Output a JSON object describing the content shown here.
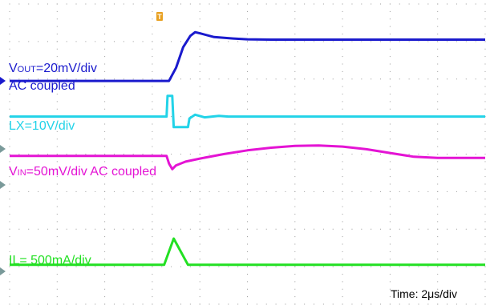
{
  "chart_data": {
    "type": "line",
    "grid": true,
    "grid_divisions": {
      "x": 10,
      "y": 8
    },
    "annotations": {
      "vout": {
        "main": "V",
        "sub": "OUT",
        "rest": "=20mV/div",
        "line2": "AC coupled"
      },
      "lx": "LX=10V/div",
      "vin": {
        "main": "V",
        "sub": "IN",
        "rest": "=50mV/div AC coupled"
      },
      "il": "IL= 500mA/div",
      "time": "Time: 2μs/div"
    },
    "trigger_marker": "T",
    "colors": {
      "vout": "#1a1acd",
      "lx": "#22d3e8",
      "vin": "#e414d4",
      "il": "#22e022",
      "grid": "#9a9a9a",
      "marker": "#e8a020"
    },
    "series": [
      {
        "name": "VOUT",
        "color": "#1a1acd",
        "x": [
          0,
          3.35,
          3.5,
          3.65,
          3.8,
          3.9,
          4.0,
          4.3,
          4.7,
          5.0,
          5.5,
          10
        ],
        "y": [
          5.95,
          5.95,
          6.3,
          6.85,
          7.15,
          7.25,
          7.22,
          7.12,
          7.08,
          7.06,
          7.05,
          7.05
        ]
      },
      {
        "name": "LX",
        "color": "#22d3e8",
        "x": [
          0,
          3.3,
          3.32,
          3.42,
          3.45,
          3.75,
          3.78,
          3.9,
          4.1,
          4.4,
          4.6,
          10
        ],
        "y": [
          5.0,
          5.0,
          5.55,
          5.55,
          4.72,
          4.72,
          4.95,
          5.05,
          4.98,
          5.02,
          5.0,
          5.0
        ]
      },
      {
        "name": "VIN",
        "color": "#e414d4",
        "x": [
          0,
          3.3,
          3.35,
          3.42,
          3.5,
          3.7,
          4.0,
          4.5,
          5.0,
          5.5,
          6.0,
          6.5,
          7.0,
          7.5,
          8.0,
          8.5,
          9.0,
          10
        ],
        "y": [
          3.95,
          3.95,
          3.75,
          3.6,
          3.7,
          3.8,
          3.88,
          4.0,
          4.1,
          4.17,
          4.22,
          4.23,
          4.2,
          4.13,
          4.03,
          3.93,
          3.9,
          3.9
        ]
      },
      {
        "name": "IL",
        "color": "#22e022",
        "x": [
          0,
          3.25,
          3.45,
          3.75,
          10
        ],
        "y": [
          1.05,
          1.05,
          1.75,
          1.05,
          1.05
        ]
      }
    ]
  }
}
